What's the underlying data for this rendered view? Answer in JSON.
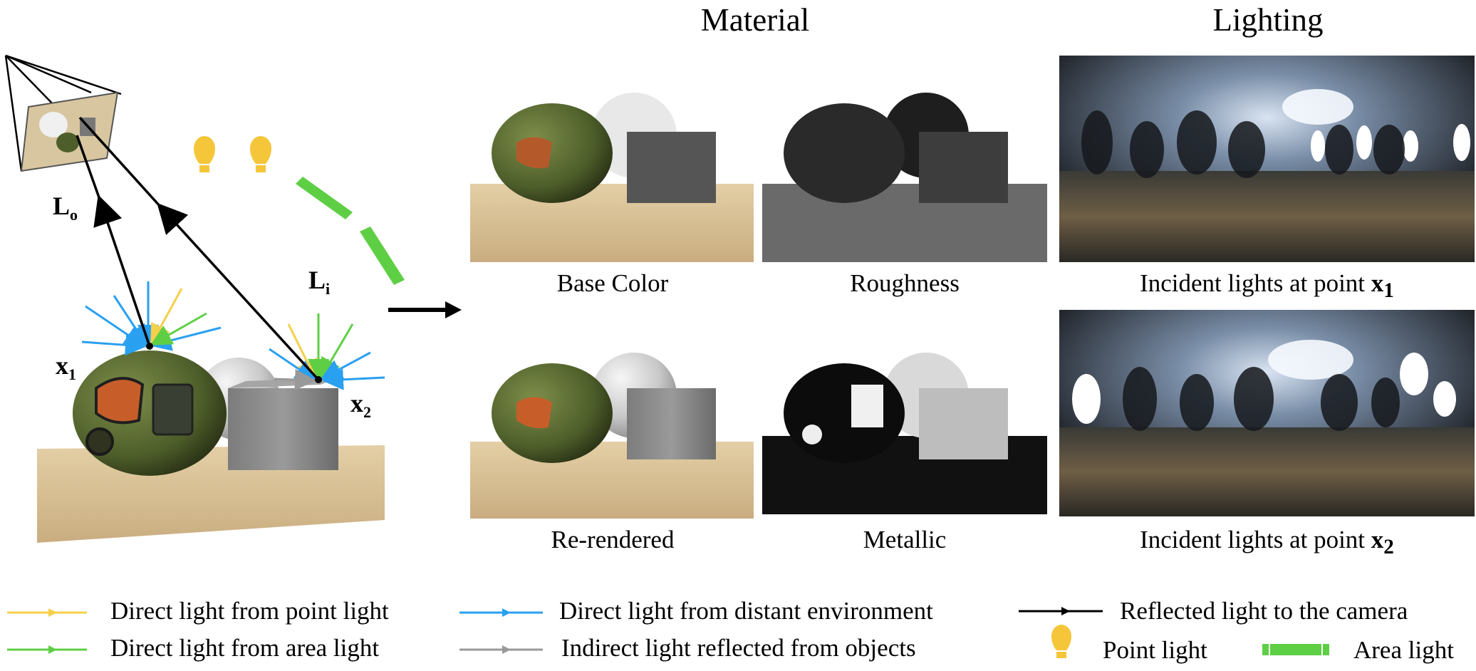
{
  "headings": {
    "material": "Material",
    "lighting": "Lighting"
  },
  "scene_labels": {
    "lo": "L",
    "lo_sub": "o",
    "li": "L",
    "li_sub": "i",
    "x1": "x",
    "x1_sub": "1",
    "x2": "x",
    "x2_sub": "2"
  },
  "captions": {
    "base_color": "Base Color",
    "roughness": "Roughness",
    "re_rendered": "Re-rendered",
    "metallic": "Metallic",
    "incident_x1_prefix": "Incident lights at point ",
    "incident_x1_var": "x",
    "incident_x1_sub": "1",
    "incident_x2_prefix": "Incident lights at point ",
    "incident_x2_var": "x",
    "incident_x2_sub": "2"
  },
  "legend": {
    "point_direct": "Direct light from point light",
    "area_direct": "Direct light from area light",
    "env_direct": "Direct light from distant environment",
    "indirect": "Indirect light reflected from objects",
    "reflected": "Reflected light to the camera",
    "point_light": "Point light",
    "area_light": "Area light"
  },
  "colors": {
    "point": "#f5d04a",
    "area": "#5ecf45",
    "env": "#2aa0f0",
    "indirect": "#999999",
    "reflected": "#000000"
  },
  "icons": [
    "camera-icon",
    "bulb-icon",
    "area-light-icon",
    "arrow-right-icon"
  ]
}
